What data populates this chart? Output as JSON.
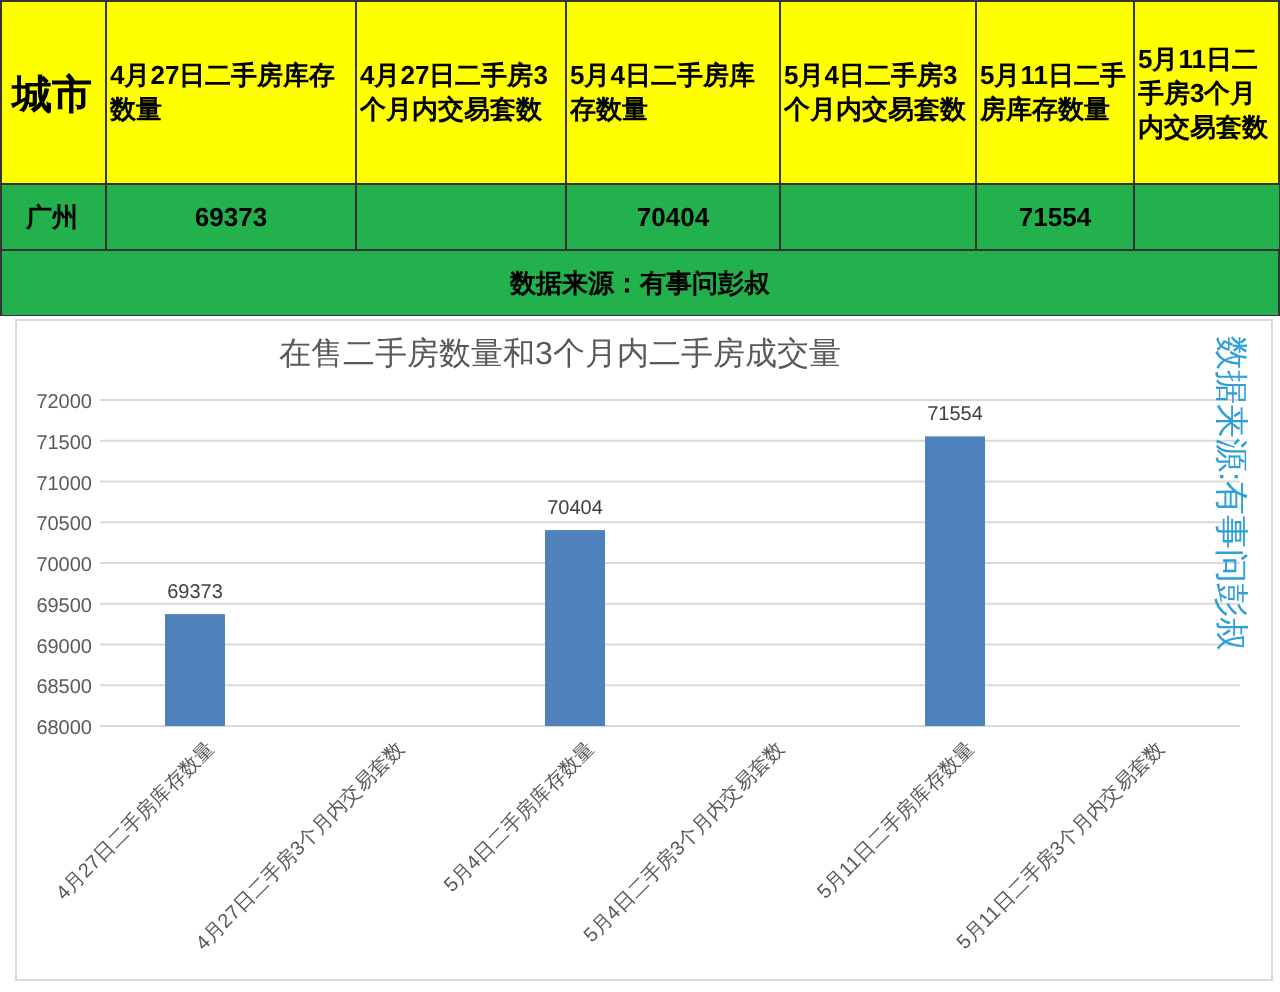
{
  "chart_data": [
    {
      "type": "heatmap",
      "ylabel": "城市",
      "categories": [
        "4月27日二手房库存数量",
        "4月27日二手房3个月内交易套数",
        "5月4日二手房库存数量",
        "5月4日二手房3个月内交易套数",
        "5月11日二手房库存数量",
        "5月11日二手房3个月内交易套数"
      ],
      "y_categories": [
        "广州"
      ],
      "cells": [
        [
          69373,
          null,
          70404,
          null,
          71554,
          null
        ]
      ],
      "data_labels": true,
      "annotations": [
        "数据来源：有事问彭叔"
      ]
    },
    {
      "type": "bar",
      "title": "在售二手房数量和3个月内二手房成交量",
      "categories": [
        "4月27日二手房库存数量",
        "4月27日二手房3个月内交易套数",
        "5月4日二手房库存数量",
        "5月4日二手房3个月内交易套数",
        "5月11日二手房库存数量",
        "5月11日二手房3个月内交易套数"
      ],
      "values": [
        69373,
        null,
        70404,
        null,
        71554,
        null
      ],
      "color": "#4f81bd",
      "ylim": [
        68000,
        72000
      ],
      "yticks": [
        68000,
        68500,
        69000,
        69500,
        70000,
        70500,
        71000,
        71500,
        72000
      ],
      "grid": "y",
      "data_labels": true,
      "annotations": [
        "数据来源:有事问彭叔"
      ]
    }
  ]
}
